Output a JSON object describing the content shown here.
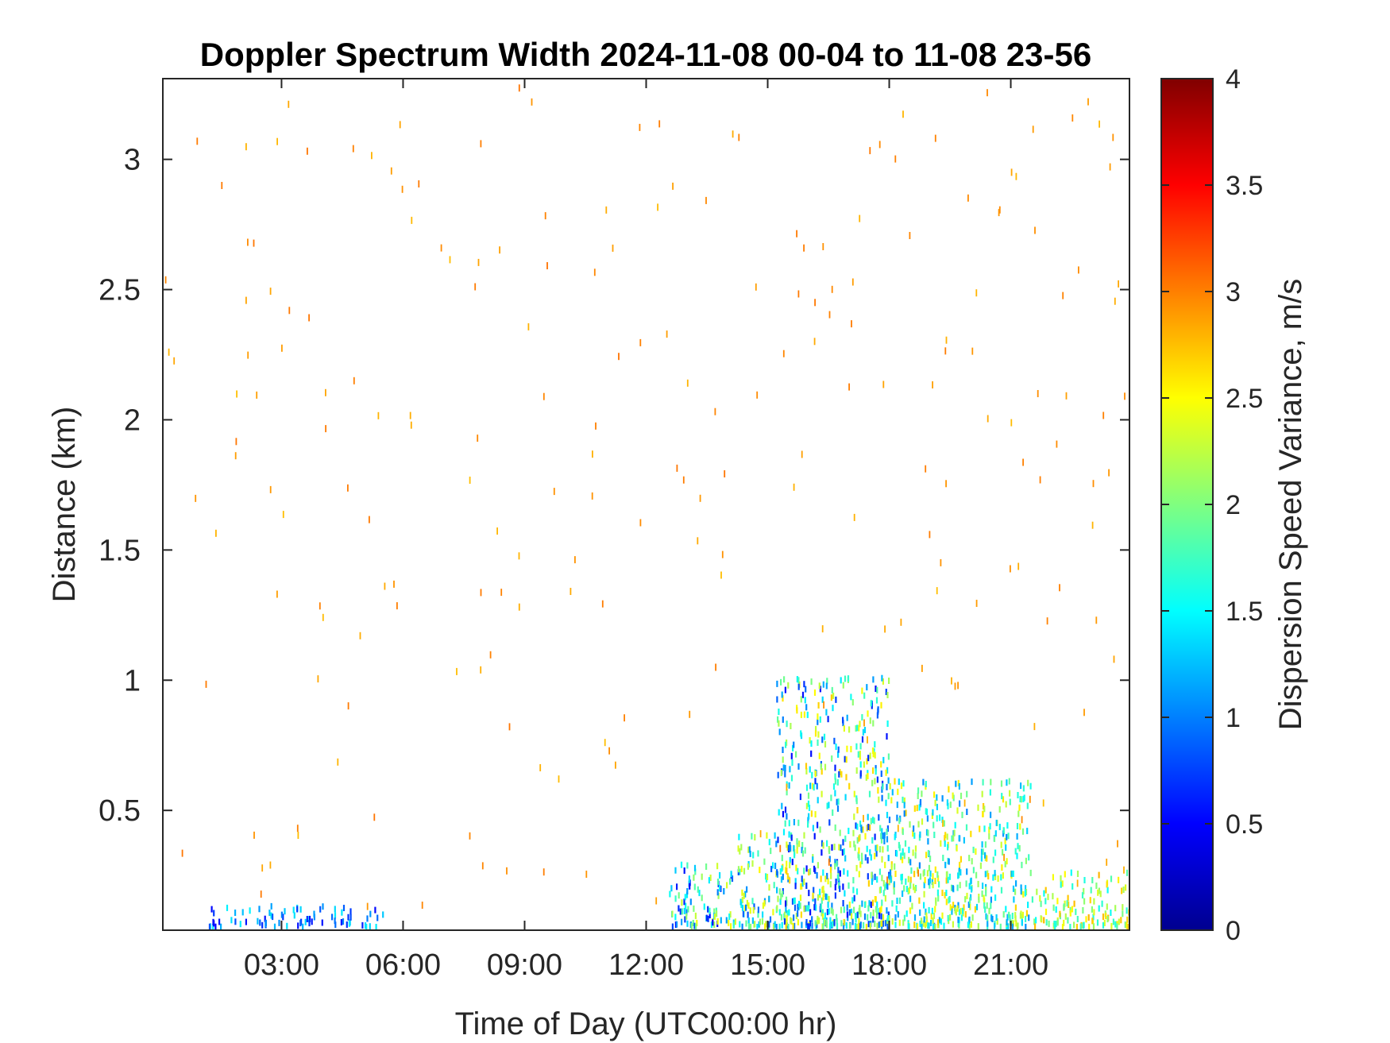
{
  "chart_data": {
    "type": "heatmap",
    "title": "Doppler Spectrum Width 2024-11-08 00-04 to 11-08 23-56",
    "xlabel": "Time of Day (UTC00:00 hr)",
    "ylabel": "Distance (km)",
    "xlim": [
      0.07,
      23.93
    ],
    "ylim": [
      0.04,
      3.31
    ],
    "x_ticks": [
      3,
      6,
      9,
      12,
      15,
      18,
      21
    ],
    "x_tick_labels": [
      "03:00",
      "06:00",
      "09:00",
      "12:00",
      "15:00",
      "18:00",
      "21:00"
    ],
    "y_ticks": [
      0.5,
      1,
      1.5,
      2,
      2.5,
      3
    ],
    "y_tick_labels": [
      "0.5",
      "1",
      "1.5",
      "2",
      "2.5",
      "3"
    ],
    "colormap": "jet",
    "colorbar": {
      "label": "Dispersion Speed Variance, m/s",
      "range": [
        0,
        4
      ],
      "ticks": [
        0,
        0.5,
        1,
        1.5,
        2,
        2.5,
        3,
        3.5,
        4
      ],
      "tick_labels": [
        "0",
        "0.5",
        "1",
        "1.5",
        "2",
        "2.5",
        "3",
        "3.5",
        "4"
      ]
    },
    "grid": false,
    "background_value_color": "#ffffff",
    "data_description_clusters": [
      {
        "x_range": [
          12.5,
          14.2
        ],
        "y_range": [
          0.04,
          0.28
        ],
        "value_range": [
          0.5,
          2.5
        ]
      },
      {
        "x_range": [
          14.2,
          15.2
        ],
        "y_range": [
          0.04,
          0.4
        ],
        "value_range": [
          0.8,
          2.6
        ]
      },
      {
        "x_range": [
          15.2,
          18.0
        ],
        "y_range": [
          0.04,
          1.0
        ],
        "value_range": [
          0.5,
          2.7
        ]
      },
      {
        "x_range": [
          18.0,
          21.5
        ],
        "y_range": [
          0.04,
          0.6
        ],
        "value_range": [
          1.0,
          2.7
        ]
      },
      {
        "x_range": [
          21.5,
          23.9
        ],
        "y_range": [
          0.04,
          0.25
        ],
        "value_range": [
          1.5,
          2.8
        ]
      },
      {
        "x_range": [
          1.2,
          5.5
        ],
        "y_range": [
          0.04,
          0.12
        ],
        "value_range": [
          0.5,
          1.5
        ]
      }
    ],
    "sparse_noise": {
      "x_range": [
        0.07,
        23.93
      ],
      "y_range": [
        0.04,
        3.31
      ],
      "value_approx": 2.9
    }
  }
}
